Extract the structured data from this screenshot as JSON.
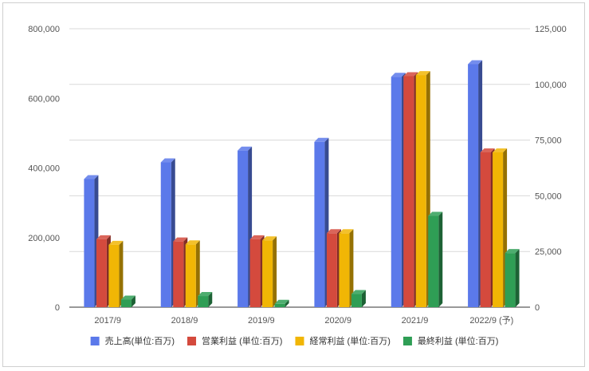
{
  "chart_data": {
    "type": "bar",
    "bar_style": "3d",
    "categories": [
      "2017/9",
      "2018/9",
      "2019/9",
      "2020/9",
      "2021/9",
      "2022/9 (予)"
    ],
    "series": [
      {
        "name": "売上高(単位:百万)",
        "axis": "left",
        "color": "#5b79ea",
        "values": [
          368000,
          416000,
          450000,
          475000,
          662000,
          698000
        ]
      },
      {
        "name": "営業利益 (単位:百万)",
        "axis": "right",
        "color": "#d44a3d",
        "values": [
          30500,
          29500,
          30500,
          33200,
          103700,
          69500
        ]
      },
      {
        "name": "経常利益 (単位:百万)",
        "axis": "right",
        "color": "#f1b605",
        "values": [
          28000,
          28200,
          30000,
          33200,
          104200,
          69500
        ]
      },
      {
        "name": "最終利益 (単位:百万)",
        "axis": "right",
        "color": "#2f9e55",
        "values": [
          3400,
          5000,
          1500,
          5900,
          41000,
          24300
        ]
      }
    ],
    "left_axis": {
      "ylim": [
        0,
        800000
      ],
      "ticks": [
        "0",
        "200,000",
        "400,000",
        "600,000",
        "800,000"
      ]
    },
    "right_axis": {
      "ylim": [
        0,
        125000
      ],
      "ticks": [
        "0",
        "25,000",
        "50,000",
        "75,000",
        "100,000",
        "125,000"
      ]
    },
    "grid": true,
    "legend_position": "bottom"
  }
}
